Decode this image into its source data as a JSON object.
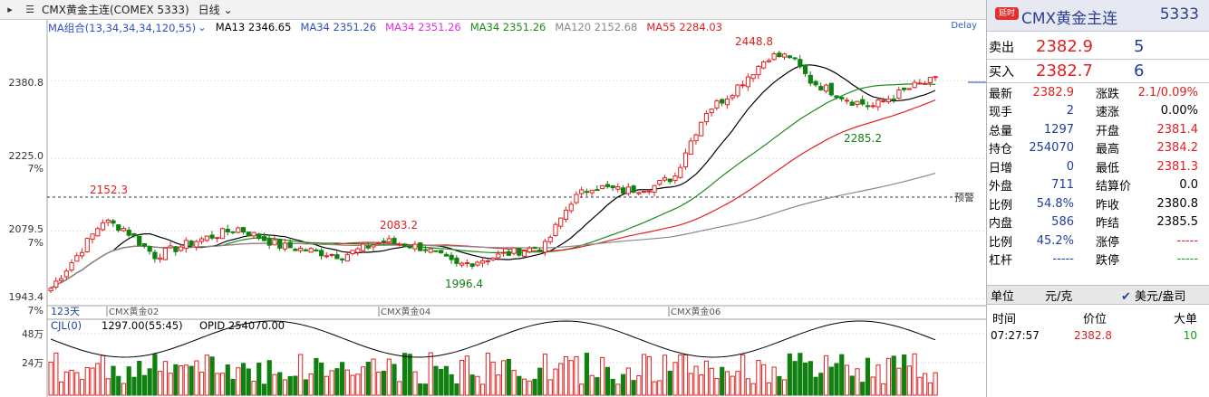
{
  "topbar": {
    "symbol": "CMX黄金主连(COMEX 5333)",
    "period": "日线"
  },
  "ma_legend": {
    "group": "MA组合(13,34,34,34,120,55)",
    "items": [
      {
        "label": "MA13 2346.65",
        "color": "#000000"
      },
      {
        "label": "MA34 2351.26",
        "color": "#3050c0"
      },
      {
        "label": "MA34 2351.26",
        "color": "#e030e0"
      },
      {
        "label": "MA34 2351.26",
        "color": "#1a8a1a"
      },
      {
        "label": "MA120 2152.68",
        "color": "#888888"
      },
      {
        "label": "MA55 2284.03",
        "color": "#e02020"
      }
    ],
    "delay": "Delay"
  },
  "price_axis": [
    "2380.8",
    "2225.0",
    "7%",
    "2079.5",
    "7%",
    "1943.4",
    "7%"
  ],
  "annotations": [
    "2448.8",
    "2152.3",
    "2083.2",
    "1996.4",
    "2285.2"
  ],
  "alert_label": "预警",
  "time_axis": {
    "days": "123天",
    "contracts": [
      "CMX黄金02",
      "CMX黄金04",
      "CMX黄金06"
    ]
  },
  "volume": {
    "header": "CJL(0)",
    "vol": "1297.00(55:45)",
    "opid": "OPID 254070.00",
    "axis": [
      "48万",
      "24万"
    ]
  },
  "quote": {
    "badge": "延时",
    "title": "CMX黄金主连",
    "code": "5333",
    "sell_label": "卖出",
    "sell_price": "2382.9",
    "sell_vol": "5",
    "buy_label": "买入",
    "buy_price": "2382.7",
    "buy_vol": "6",
    "rows": [
      {
        "l1": "最新",
        "v1": "2382.9",
        "c1": "red",
        "l2": "涨跌",
        "v2": "2.1/0.09%",
        "c2": "red"
      },
      {
        "l1": "现手",
        "v1": "2",
        "c1": "blue",
        "l2": "速涨",
        "v2": "0.00%",
        "c2": "blk"
      },
      {
        "l1": "总量",
        "v1": "1297",
        "c1": "blue",
        "l2": "开盘",
        "v2": "2381.4",
        "c2": "red"
      },
      {
        "l1": "持仓",
        "v1": "254070",
        "c1": "blue",
        "l2": "最高",
        "v2": "2384.2",
        "c2": "red"
      },
      {
        "l1": "日增",
        "v1": "0",
        "c1": "blue",
        "l2": "最低",
        "v2": "2381.3",
        "c2": "red"
      },
      {
        "l1": "外盘",
        "v1": "711",
        "c1": "blue",
        "l2": "结算价",
        "v2": "0.0",
        "c2": "blk"
      },
      {
        "l1": "比例",
        "v1": "54.8%",
        "c1": "blue",
        "l2": "昨收",
        "v2": "2380.8",
        "c2": "blk"
      },
      {
        "l1": "内盘",
        "v1": "586",
        "c1": "blue",
        "l2": "昨结",
        "v2": "2385.5",
        "c2": "blk"
      },
      {
        "l1": "比例",
        "v1": "45.2%",
        "c1": "blue",
        "l2": "涨停",
        "v2": "-----",
        "c2": "red"
      },
      {
        "l1": "杠杆",
        "v1": "-----",
        "c1": "blue",
        "l2": "跌停",
        "v2": "-----",
        "c2": "grn"
      }
    ],
    "unit_label": "单位",
    "unit_value": "元/克",
    "currency": "美元/盎司",
    "ticks_header": {
      "time": "时间",
      "price": "价位",
      "big": "大单"
    },
    "ticks": [
      {
        "time": "07:27:57",
        "price": "2382.8",
        "big": "10"
      }
    ]
  },
  "colors": {
    "up": "#e02020",
    "down": "#108010",
    "blue": "#2040a0"
  }
}
